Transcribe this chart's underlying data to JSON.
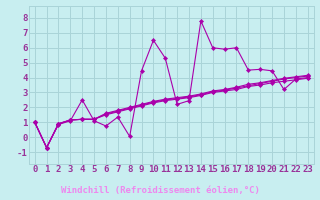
{
  "background_color": "#c8eef0",
  "grid_color": "#aad4d8",
  "line_color": "#aa00aa",
  "xlabel": "Windchill (Refroidissement éolien,°C)",
  "xlabel_fontsize": 6.5,
  "xlabel_color": "#cc44cc",
  "xlabel_bg": "#5533aa",
  "xlim": [
    -0.5,
    23.5
  ],
  "ylim": [
    -1.8,
    8.8
  ],
  "xticks": [
    0,
    1,
    2,
    3,
    4,
    5,
    6,
    7,
    8,
    9,
    10,
    11,
    12,
    13,
    14,
    15,
    16,
    17,
    18,
    19,
    20,
    21,
    22,
    23
  ],
  "yticks": [
    -1,
    0,
    1,
    2,
    3,
    4,
    5,
    6,
    7,
    8
  ],
  "tick_fontsize": 6.5,
  "tick_color": "#993399",
  "series": [
    [
      1.0,
      -0.7,
      0.85,
      1.1,
      2.5,
      1.1,
      0.75,
      1.35,
      0.05,
      4.45,
      6.5,
      5.3,
      2.2,
      2.45,
      7.8,
      6.0,
      5.9,
      6.0,
      4.5,
      4.55,
      4.45,
      3.2,
      3.9,
      4.0
    ],
    [
      1.0,
      -0.7,
      0.9,
      1.15,
      1.2,
      1.2,
      1.5,
      1.7,
      1.9,
      2.1,
      2.3,
      2.45,
      2.55,
      2.65,
      2.8,
      3.0,
      3.1,
      3.2,
      3.4,
      3.5,
      3.65,
      3.75,
      3.85,
      3.95
    ],
    [
      1.0,
      -0.7,
      0.9,
      1.15,
      1.2,
      1.2,
      1.55,
      1.75,
      1.95,
      2.15,
      2.35,
      2.5,
      2.6,
      2.7,
      2.85,
      3.05,
      3.15,
      3.3,
      3.45,
      3.6,
      3.75,
      3.9,
      4.0,
      4.1
    ],
    [
      1.0,
      -0.7,
      0.9,
      1.15,
      1.2,
      1.2,
      1.6,
      1.8,
      2.0,
      2.2,
      2.4,
      2.55,
      2.65,
      2.75,
      2.9,
      3.1,
      3.2,
      3.35,
      3.55,
      3.65,
      3.8,
      3.95,
      4.05,
      4.15
    ]
  ]
}
